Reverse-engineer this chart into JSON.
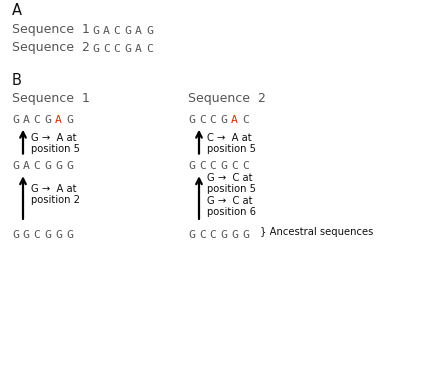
{
  "bg_color": "#ffffff",
  "section_A_label": "A",
  "seq1_label": "Sequence  1",
  "seq2_label": "Sequence  2",
  "seq1_A": "GACGAG",
  "seq2_A": "GCCGAC",
  "section_B_label": "B",
  "col1_header": "Sequence  1",
  "col2_header": "Sequence  2",
  "arrow1_label_line1": "G →  A at",
  "arrow1_label_line2": "position 5",
  "arrow2_label_line1": "C →  A at",
  "arrow2_label_line2": "position 5",
  "arrow3_label_line1": "G →  A at",
  "arrow3_label_line2": "position 2",
  "arrow4_label_line1": "G →  C at",
  "arrow4_label_line2": "position 5",
  "arrow5_label_line1": "G →  C at",
  "arrow5_label_line2": "position 6",
  "ancestral_label": "} Ancestral sequences",
  "mono_color": "#555555",
  "red_color": "#cc3300",
  "black_color": "#111111"
}
